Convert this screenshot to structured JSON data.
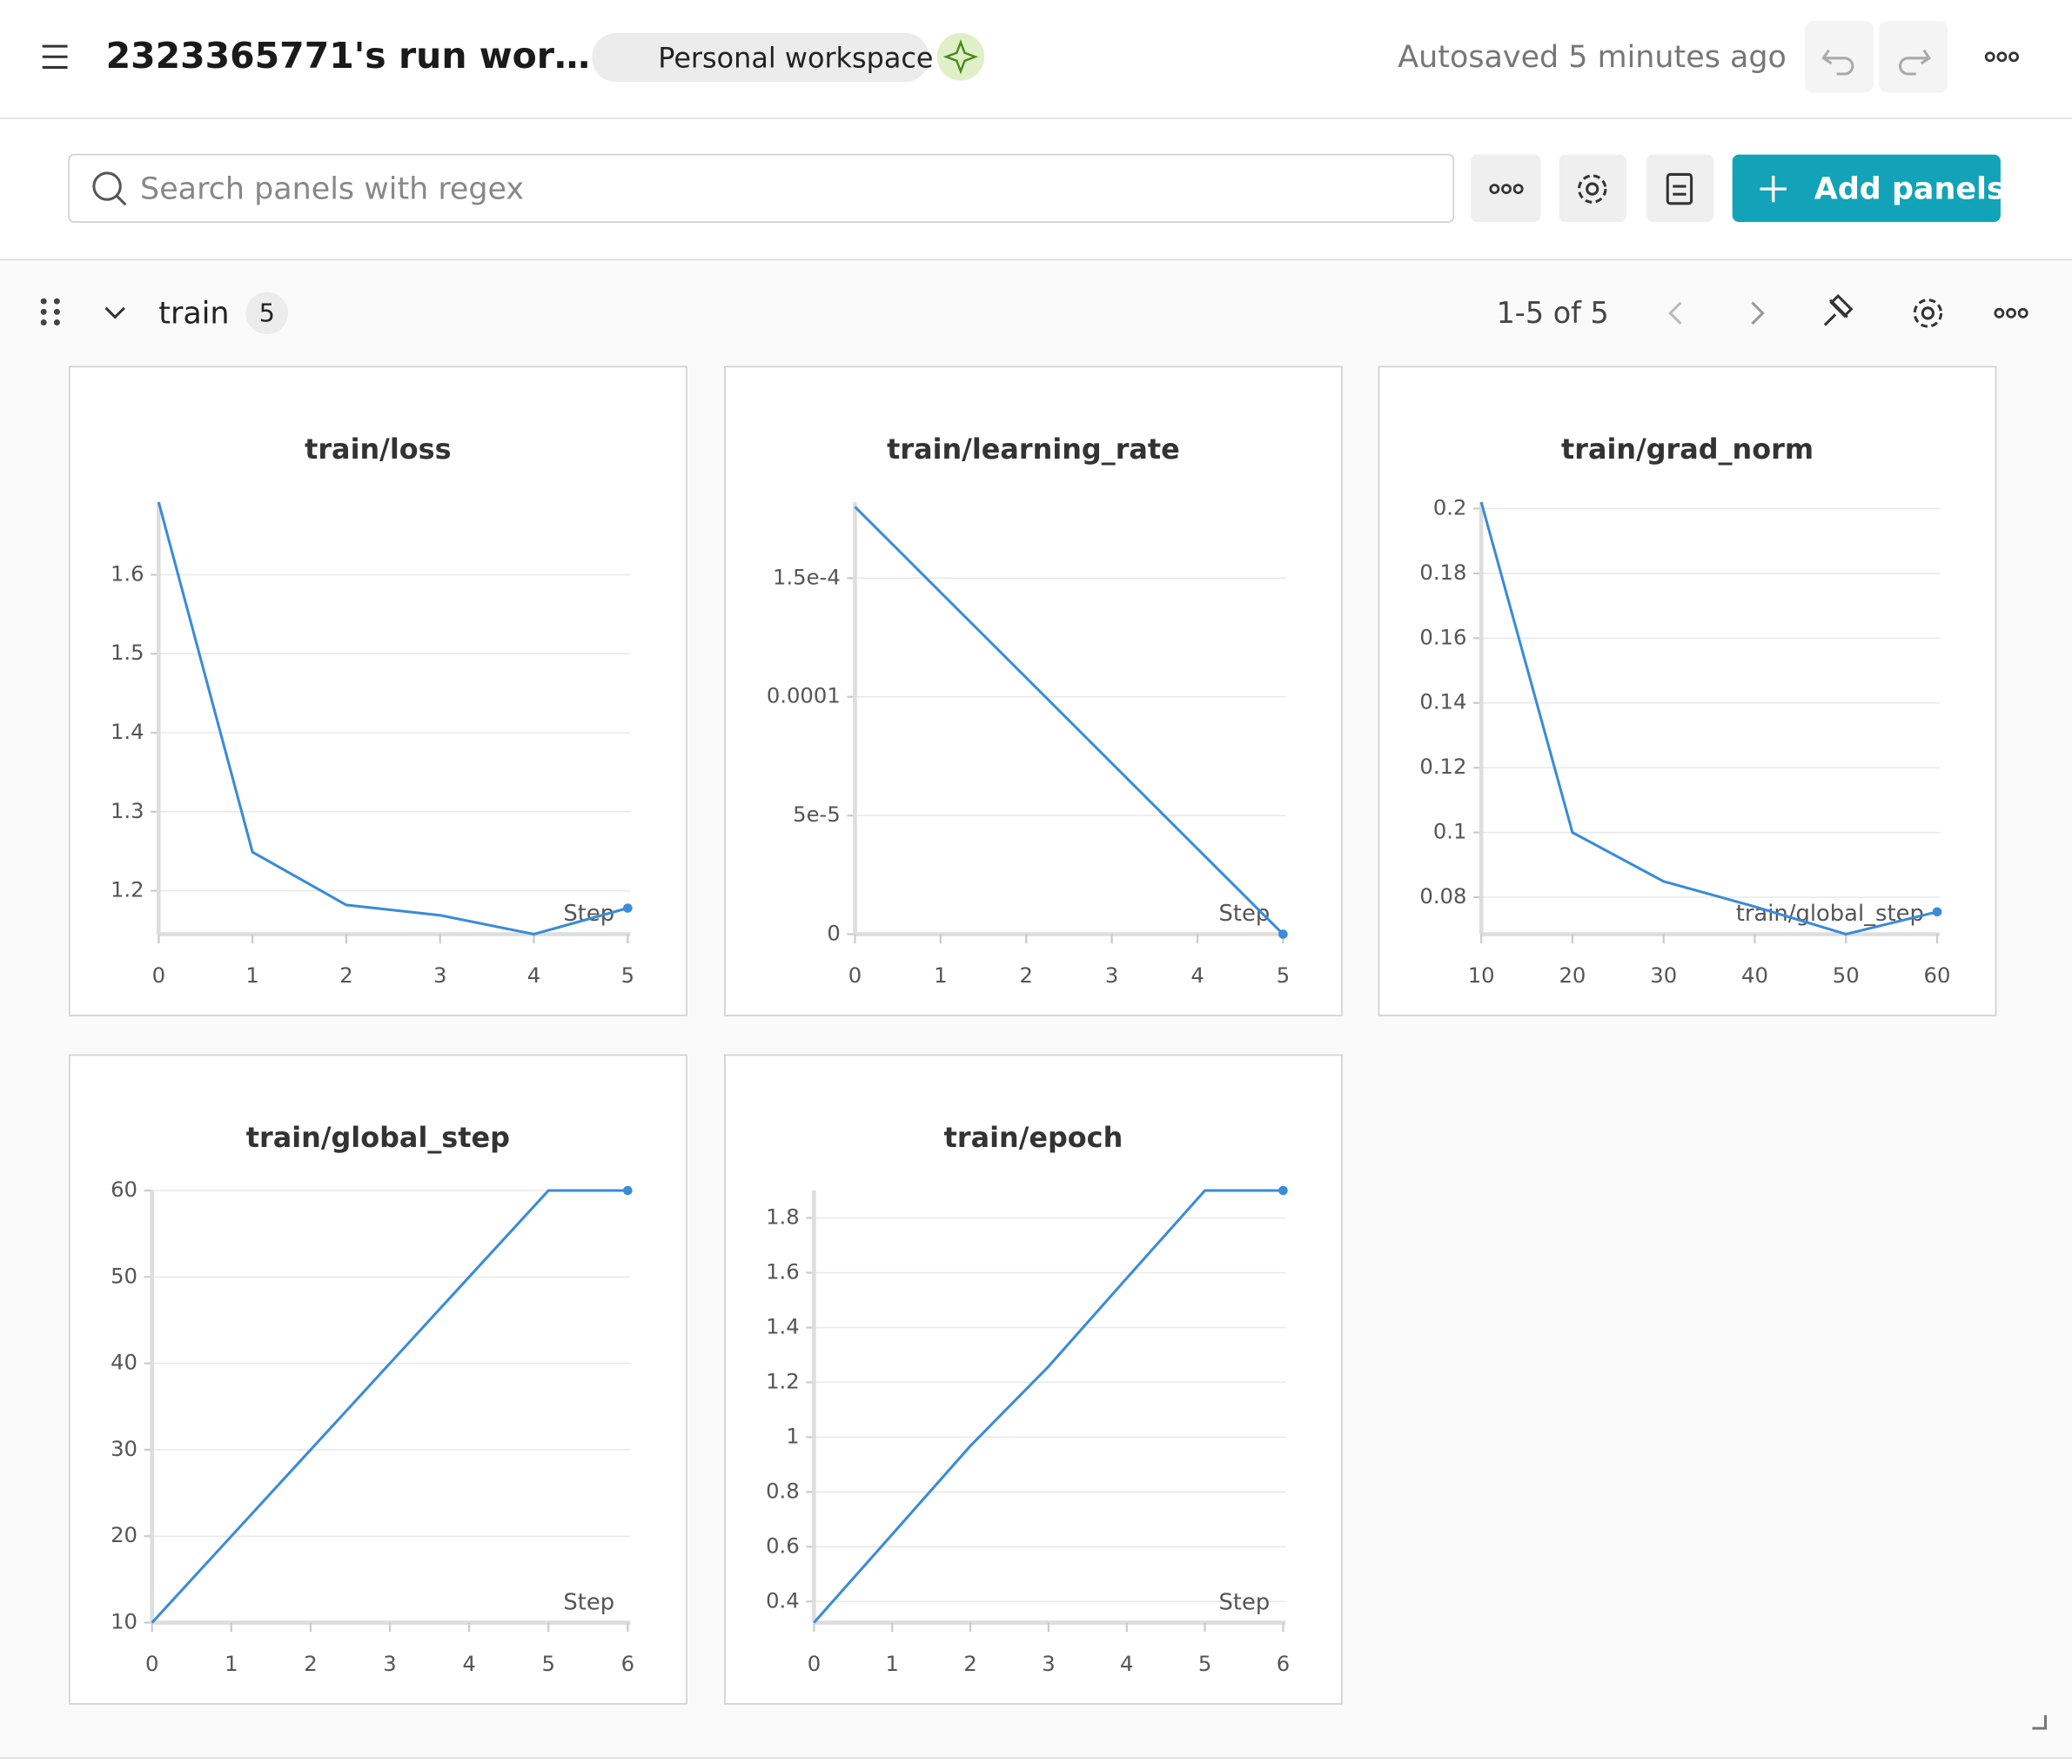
{
  "header": {
    "title": "2323365771's run wor…",
    "workspace": "Personal workspace",
    "status": "Autosaved 5 minutes ago"
  },
  "toolbar": {
    "search_placeholder": "Search panels with regex",
    "add_button": "Add panels"
  },
  "section": {
    "name": "train",
    "count": 5,
    "pagination": "1-5 of 5"
  },
  "panels": [
    {
      "type": "line",
      "title": "train/loss",
      "x_label": "Step",
      "color": "#3a8bd8",
      "x": [
        0,
        1,
        2,
        3,
        4,
        5
      ],
      "values": [
        1.692,
        1.249,
        1.182,
        1.169,
        1.145,
        1.178
      ],
      "xlim": [
        0,
        5
      ],
      "ylim": [
        1.145,
        1.692
      ],
      "xticks": [
        0,
        1,
        2,
        3,
        4,
        5
      ],
      "yticks": [
        1.2,
        1.3,
        1.4,
        1.5,
        1.6
      ]
    },
    {
      "type": "line",
      "title": "train/learning_rate",
      "x_label": "Step",
      "color": "#3a8bd8",
      "x": [
        0,
        1,
        2,
        3,
        4,
        5
      ],
      "values": [
        0.00018,
        0.000144,
        0.000108,
        7.2e-05,
        3.6e-05,
        0
      ],
      "xlim": [
        0,
        5
      ],
      "ylim": [
        0,
        0.000182
      ],
      "xticks": [
        0,
        1,
        2,
        3,
        4,
        5
      ],
      "yticks": [
        0,
        {
          "value": 5e-05,
          "label": "5e-5"
        },
        0.0001,
        {
          "value": 0.00015,
          "label": "1.5e-4"
        }
      ]
    },
    {
      "type": "line",
      "title": "train/grad_norm",
      "x_label": "train/global_step",
      "color": "#3a8bd8",
      "x": [
        10,
        20,
        30,
        40,
        50,
        60
      ],
      "values": [
        0.202,
        0.1,
        0.0849,
        0.0771,
        0.0686,
        0.0755
      ],
      "xlim": [
        10,
        60
      ],
      "ylim": [
        0.0686,
        0.202
      ],
      "xticks": [
        10,
        20,
        30,
        40,
        50,
        60
      ],
      "yticks": [
        0.08,
        0.1,
        0.12,
        0.14,
        0.16,
        0.18,
        0.2
      ]
    },
    {
      "type": "line",
      "title": "train/global_step",
      "x_label": "Step",
      "color": "#3a8bd8",
      "x": [
        0,
        1,
        2,
        3,
        4,
        5,
        6
      ],
      "values": [
        10,
        20,
        30,
        40,
        50,
        60,
        60
      ],
      "xlim": [
        0,
        6
      ],
      "ylim": [
        10,
        60
      ],
      "xticks": [
        0,
        1,
        2,
        3,
        4,
        5,
        6
      ],
      "yticks": [
        10,
        20,
        30,
        40,
        50,
        60
      ]
    },
    {
      "type": "line",
      "title": "train/epoch",
      "x_label": "Step",
      "color": "#3a8bd8",
      "x": [
        0,
        1,
        2,
        3,
        4,
        5,
        6
      ],
      "values": [
        0.323,
        0.645,
        0.968,
        1.258,
        1.58,
        1.9,
        1.9
      ],
      "xlim": [
        0,
        6
      ],
      "ylim": [
        0.323,
        1.9
      ],
      "xticks": [
        0,
        1,
        2,
        3,
        4,
        5,
        6
      ],
      "yticks": [
        0.4,
        0.6,
        0.8,
        1,
        1.2,
        1.4,
        1.6,
        1.8
      ]
    }
  ]
}
